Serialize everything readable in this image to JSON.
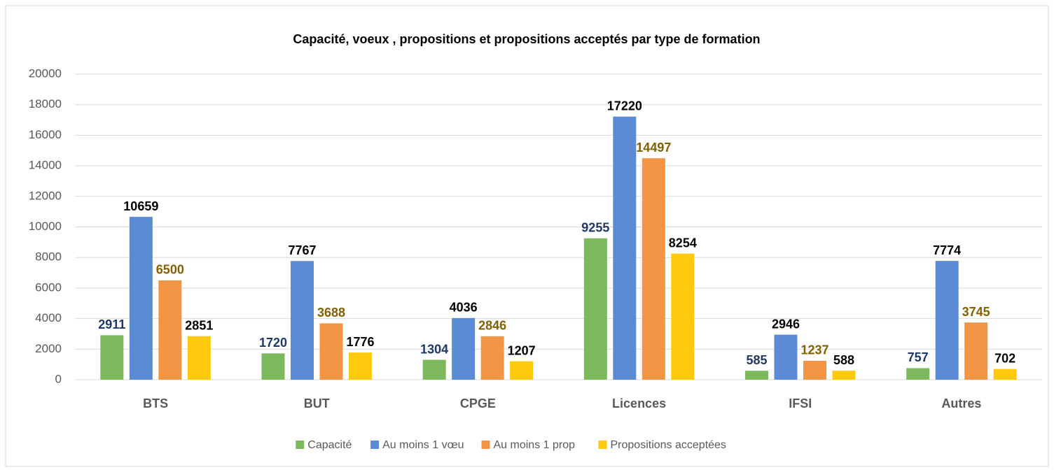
{
  "chart_data": {
    "type": "bar",
    "title": "Capacité, voeux , propositions et propositions acceptés par type de formation",
    "categories": [
      "BTS",
      "BUT",
      "CPGE",
      "Licences",
      "IFSI",
      "Autres"
    ],
    "series": [
      {
        "name": "Capacité",
        "color": "#7cb95c",
        "label_color": "#1f3864",
        "values": [
          2911,
          1720,
          1304,
          9255,
          585,
          757
        ]
      },
      {
        "name": "Au moins 1 vœu",
        "color": "#5b8bd4",
        "label_color": "#000000",
        "values": [
          10659,
          7767,
          4036,
          17220,
          2946,
          7774
        ]
      },
      {
        "name": "Au moins 1 prop",
        "color": "#f29544",
        "label_color": "#806000",
        "values": [
          6500,
          3688,
          2846,
          14497,
          1237,
          3745
        ]
      },
      {
        "name": "Propositions acceptées",
        "color": "#ffc90e",
        "label_color": "#000000",
        "values": [
          2851,
          1776,
          1207,
          8254,
          588,
          702
        ]
      }
    ],
    "ylim": [
      0,
      20000
    ],
    "yticks": [
      0,
      2000,
      4000,
      6000,
      8000,
      10000,
      12000,
      14000,
      16000,
      18000,
      20000
    ],
    "grid": true,
    "legend": "bottom"
  }
}
